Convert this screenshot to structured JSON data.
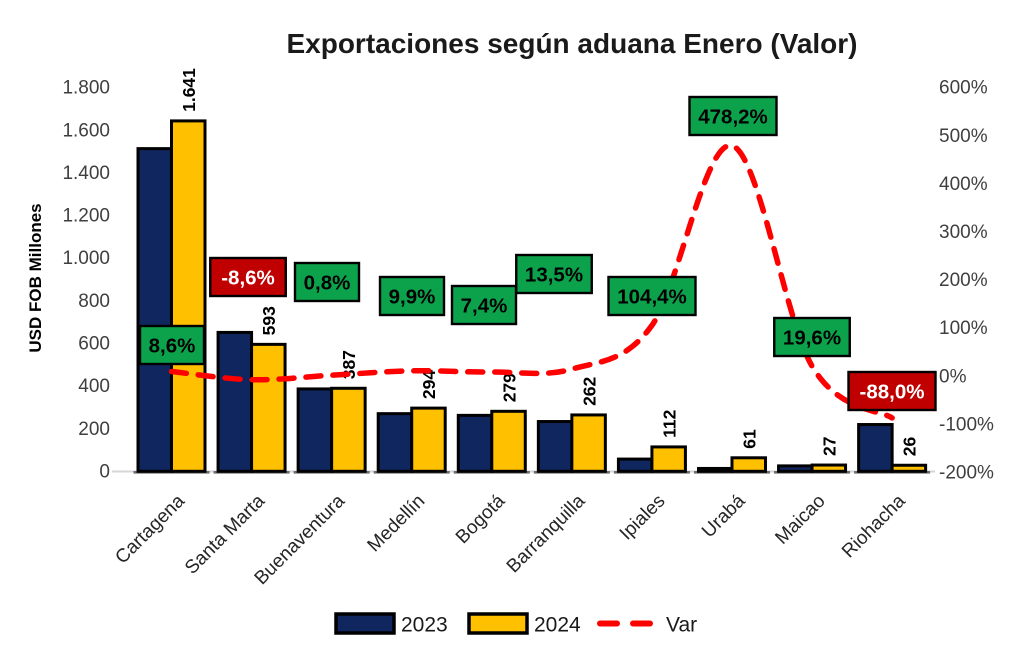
{
  "chart": {
    "title": "Exportaciones según aduana Enero (Valor)",
    "ylabel": "USD FOB Millones",
    "legend": {
      "s2023": "2023",
      "s2024": "2024",
      "var": "Var"
    }
  },
  "chart_data": {
    "type": "bar+line combo",
    "title": "Exportaciones según aduana Enero (Valor)",
    "xlabel": "",
    "ylabel": "USD FOB Millones",
    "legend_position": "bottom",
    "grid": false,
    "categories": [
      "Cartagena",
      "Santa Marta",
      "Buenaventura",
      "Medellín",
      "Bogotá",
      "Barranquilla",
      "Ipiales",
      "Urabá",
      "Maicao",
      "Riohacha"
    ],
    "series": [
      {
        "name": "2023",
        "type": "bar",
        "axis": "left",
        "values": [
          1511,
          649,
          384,
          268,
          260,
          231,
          55,
          11,
          23,
          217
        ]
      },
      {
        "name": "2024",
        "type": "bar",
        "axis": "left",
        "values": [
          1641,
          593,
          387,
          294,
          279,
          262,
          112,
          61,
          27,
          26
        ],
        "labels": [
          "1.641",
          "593",
          "387",
          "294",
          "279",
          "262",
          "112",
          "61",
          "27",
          "26"
        ]
      },
      {
        "name": "Var",
        "type": "line-dashed-smooth",
        "axis": "right",
        "values": [
          8.6,
          -8.6,
          0.8,
          9.9,
          7.4,
          13.5,
          104.4,
          478.2,
          19.6,
          -88.0
        ],
        "labels": [
          "8,6%",
          "-8,6%",
          "0,8%",
          "9,9%",
          "7,4%",
          "13,5%",
          "104,4%",
          "478,2%",
          "19,6%",
          "-88,0%"
        ]
      }
    ],
    "left_axis": {
      "range": [
        0,
        1800
      ],
      "tick_step": 200,
      "ticks": [
        "1.800",
        "1.600",
        "1.400",
        "1.200",
        "1.000",
        "800",
        "600",
        "400",
        "200",
        "0"
      ]
    },
    "right_axis": {
      "range": [
        -200,
        600
      ],
      "tick_step": 100,
      "ticks": [
        "600%",
        "500%",
        "400%",
        "300%",
        "200%",
        "100%",
        "0%",
        "-100%",
        "-200%"
      ]
    },
    "colors": {
      "bar2023": "#10265E",
      "bar2024": "#FFC000",
      "bar_border": "#000000",
      "line": "#FF0000",
      "positive_label_bg": "#0CA24C",
      "negative_label_bg": "#C00000",
      "positive_label_text": "#000000",
      "negative_label_text": "#FFFFFF",
      "tick_text": "#3F3F3F",
      "category_text": "#262626",
      "title_text": "#1A1A1A"
    }
  }
}
